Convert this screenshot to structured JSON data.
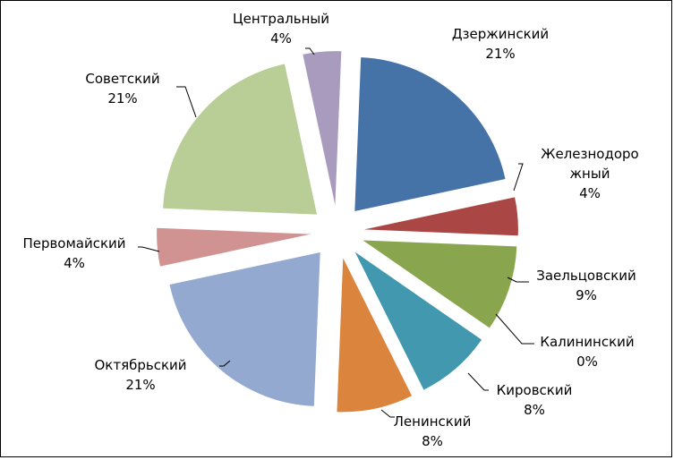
{
  "chart_data": {
    "type": "pie",
    "title": "",
    "exploded": true,
    "legend": "none",
    "slices": [
      {
        "name": "Дзержинский",
        "value": 21,
        "label": "21%",
        "color": "#4572a7"
      },
      {
        "name": "Железнодорожный",
        "name_lines": [
          "Железнодоро",
          "жный"
        ],
        "value": 4,
        "label": "4%",
        "color": "#aa4643"
      },
      {
        "name": "Заельцовский",
        "value": 9,
        "label": "9%",
        "color": "#89a54e"
      },
      {
        "name": "Калининский",
        "value": 0,
        "label": "0%",
        "color": "#71588f"
      },
      {
        "name": "Кировский",
        "value": 8,
        "label": "8%",
        "color": "#4198af"
      },
      {
        "name": "Ленинский",
        "value": 8,
        "label": "8%",
        "color": "#db843d"
      },
      {
        "name": "Октябрьский",
        "value": 21,
        "label": "21%",
        "color": "#93a9cf"
      },
      {
        "name": "Первомайский",
        "value": 4,
        "label": "4%",
        "color": "#d19392"
      },
      {
        "name": "Советский",
        "value": 21,
        "label": "21%",
        "color": "#b9cd96"
      },
      {
        "name": "Центральный",
        "value": 4,
        "label": "4%",
        "color": "#a99bbd"
      }
    ]
  }
}
